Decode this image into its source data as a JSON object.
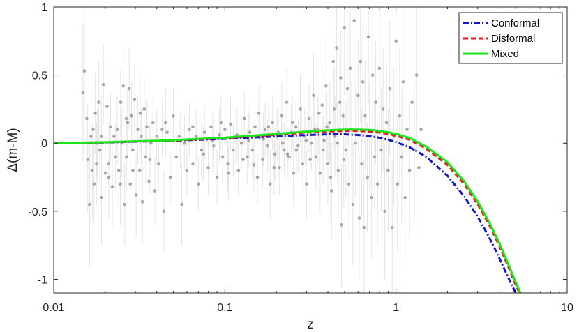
{
  "chart_data": {
    "type": "scatter",
    "title": "",
    "xlabel": "z",
    "ylabel": "Δ(m-M)",
    "xscale": "log",
    "xlim": [
      0.01,
      10
    ],
    "ylim": [
      -1.1,
      1
    ],
    "x_ticks": [
      {
        "value": 0.01,
        "label": "0.01"
      },
      {
        "value": 0.1,
        "label": "0.1"
      },
      {
        "value": 1,
        "label": "1"
      },
      {
        "value": 10,
        "label": "10"
      }
    ],
    "y_ticks": [
      {
        "value": 1,
        "label": "1"
      },
      {
        "value": 0.5,
        "label": "0.5"
      },
      {
        "value": 0,
        "label": "0"
      },
      {
        "value": -0.5,
        "label": "-0.5"
      },
      {
        "value": -1,
        "label": "-1"
      }
    ],
    "grid": false,
    "legend_position": "top-right",
    "scatter_color": "#a6a6a6",
    "errorbar_color": "#e4e4e4",
    "data_points": [
      [
        0.0151,
        0.53,
        0.6
      ],
      [
        0.0148,
        0.37,
        0.5
      ],
      [
        0.0156,
        0.18,
        0.35
      ],
      [
        0.0158,
        -0.12,
        0.4
      ],
      [
        0.0162,
        -0.45,
        0.45
      ],
      [
        0.0165,
        0.05,
        0.3
      ],
      [
        0.0168,
        -0.2,
        0.35
      ],
      [
        0.017,
        0.1,
        0.3
      ],
      [
        0.0172,
        -0.3,
        0.3
      ],
      [
        0.0175,
        0.22,
        0.3
      ],
      [
        0.0178,
        -0.15,
        0.3
      ],
      [
        0.018,
        0.0,
        0.25
      ],
      [
        0.0183,
        0.3,
        0.3
      ],
      [
        0.0186,
        -0.05,
        0.25
      ],
      [
        0.019,
        -0.4,
        0.35
      ],
      [
        0.0195,
        0.43,
        0.3
      ],
      [
        0.02,
        -0.22,
        0.3
      ],
      [
        0.0205,
        0.27,
        0.3
      ],
      [
        0.021,
        -0.15,
        0.3
      ],
      [
        0.0215,
        0.12,
        0.25
      ],
      [
        0.022,
        -0.32,
        0.3
      ],
      [
        0.0225,
        0.05,
        0.25
      ],
      [
        0.023,
        -0.1,
        0.25
      ],
      [
        0.0235,
        0.1,
        0.25
      ],
      [
        0.024,
        -0.2,
        0.25
      ],
      [
        0.0246,
        0.3,
        0.25
      ],
      [
        0.025,
        0.0,
        0.25
      ],
      [
        0.0255,
        0.42,
        0.3
      ],
      [
        0.026,
        -0.45,
        0.3
      ],
      [
        0.0266,
        -0.1,
        0.25
      ],
      [
        0.027,
        0.15,
        0.25
      ],
      [
        0.0276,
        0.4,
        0.3
      ],
      [
        0.028,
        -0.3,
        0.25
      ],
      [
        0.0285,
        0.2,
        0.25
      ],
      [
        0.029,
        -0.05,
        0.25
      ],
      [
        0.0297,
        0.32,
        0.25
      ],
      [
        0.0303,
        -0.38,
        0.3
      ],
      [
        0.031,
        0.1,
        0.25
      ],
      [
        0.0318,
        -0.2,
        0.25
      ],
      [
        0.0325,
        0.05,
        0.2
      ],
      [
        0.033,
        -0.43,
        0.3
      ],
      [
        0.0338,
        0.25,
        0.25
      ],
      [
        0.0345,
        -0.1,
        0.2
      ],
      [
        0.035,
        0.12,
        0.2
      ],
      [
        0.036,
        -0.28,
        0.25
      ],
      [
        0.037,
        0.0,
        0.2
      ],
      [
        0.038,
        0.15,
        0.2
      ],
      [
        0.039,
        -0.35,
        0.25
      ],
      [
        0.04,
        0.05,
        0.2
      ],
      [
        0.041,
        -0.15,
        0.2
      ],
      [
        0.043,
        0.1,
        0.2
      ],
      [
        0.044,
        -0.5,
        0.3
      ],
      [
        0.046,
        0.08,
        0.2
      ],
      [
        0.048,
        -0.25,
        0.2
      ],
      [
        0.05,
        0.2,
        0.2
      ],
      [
        0.052,
        -0.1,
        0.2
      ],
      [
        0.054,
        0.05,
        0.2
      ],
      [
        0.056,
        -0.45,
        0.3
      ],
      [
        0.058,
        0.0,
        0.2
      ],
      [
        0.06,
        -0.2,
        0.2
      ],
      [
        0.062,
        0.1,
        0.2
      ],
      [
        0.065,
        -0.15,
        0.2
      ],
      [
        0.068,
        0.05,
        0.2
      ],
      [
        0.07,
        -0.3,
        0.2
      ],
      [
        0.073,
        -0.05,
        0.2
      ],
      [
        0.076,
        0.08,
        0.2
      ],
      [
        0.08,
        -0.18,
        0.2
      ],
      [
        0.083,
        0.12,
        0.2
      ],
      [
        0.086,
        -0.02,
        0.2
      ],
      [
        0.09,
        -0.25,
        0.2
      ],
      [
        0.093,
        0.06,
        0.2
      ],
      [
        0.097,
        -0.1,
        0.2
      ],
      [
        0.1,
        0.1,
        0.2
      ],
      [
        0.104,
        -0.15,
        0.2
      ],
      [
        0.108,
        0.14,
        0.2
      ],
      [
        0.112,
        -0.05,
        0.2
      ],
      [
        0.116,
        0.05,
        0.2
      ],
      [
        0.12,
        -0.2,
        0.2
      ],
      [
        0.125,
        0.0,
        0.2
      ],
      [
        0.13,
        0.18,
        0.2
      ],
      [
        0.135,
        -0.1,
        0.2
      ],
      [
        0.14,
        0.08,
        0.2
      ],
      [
        0.145,
        -0.05,
        0.2
      ],
      [
        0.15,
        0.12,
        0.2
      ],
      [
        0.155,
        -0.25,
        0.2
      ],
      [
        0.16,
        0.04,
        0.2
      ],
      [
        0.166,
        -0.12,
        0.2
      ],
      [
        0.172,
        0.1,
        0.2
      ],
      [
        0.178,
        -0.02,
        0.2
      ],
      [
        0.184,
        -0.3,
        0.25
      ],
      [
        0.19,
        0.15,
        0.2
      ],
      [
        0.196,
        -0.08,
        0.2
      ],
      [
        0.202,
        0.05,
        0.2
      ],
      [
        0.208,
        -0.18,
        0.2
      ],
      [
        0.215,
        0.2,
        0.25
      ],
      [
        0.222,
        -0.05,
        0.2
      ],
      [
        0.23,
        0.3,
        0.25
      ],
      [
        0.237,
        -0.1,
        0.2
      ],
      [
        0.245,
        0.08,
        0.2
      ],
      [
        0.252,
        -0.22,
        0.25
      ],
      [
        0.26,
        0.12,
        0.2
      ],
      [
        0.268,
        -0.02,
        0.2
      ],
      [
        0.276,
        0.25,
        0.25
      ],
      [
        0.285,
        -0.15,
        0.2
      ],
      [
        0.293,
        0.05,
        0.2
      ],
      [
        0.3,
        -0.3,
        0.25
      ],
      [
        0.31,
        0.18,
        0.25
      ],
      [
        0.32,
        0.0,
        0.2
      ],
      [
        0.33,
        0.35,
        0.3
      ],
      [
        0.34,
        -0.1,
        0.25
      ],
      [
        0.35,
        0.1,
        0.25
      ],
      [
        0.36,
        -0.22,
        0.3
      ],
      [
        0.37,
        0.28,
        0.3
      ],
      [
        0.38,
        0.02,
        0.25
      ],
      [
        0.39,
        0.42,
        0.35
      ],
      [
        0.4,
        -0.15,
        0.3
      ],
      [
        0.41,
        0.15,
        0.3
      ],
      [
        0.42,
        -0.35,
        0.35
      ],
      [
        0.43,
        0.6,
        0.4
      ],
      [
        0.44,
        0.05,
        0.3
      ],
      [
        0.45,
        0.7,
        0.45
      ],
      [
        0.46,
        -0.2,
        0.35
      ],
      [
        0.47,
        0.3,
        0.35
      ],
      [
        0.48,
        -0.6,
        0.45
      ],
      [
        0.49,
        0.2,
        0.35
      ],
      [
        0.5,
        0.85,
        0.5
      ],
      [
        0.51,
        -0.05,
        0.35
      ],
      [
        0.52,
        0.4,
        0.4
      ],
      [
        0.53,
        -0.3,
        0.4
      ],
      [
        0.54,
        0.55,
        0.45
      ],
      [
        0.55,
        0.1,
        0.35
      ],
      [
        0.56,
        -0.45,
        0.45
      ],
      [
        0.57,
        0.9,
        0.5
      ],
      [
        0.58,
        0.0,
        0.4
      ],
      [
        0.6,
        0.35,
        0.4
      ],
      [
        0.61,
        -0.55,
        0.45
      ],
      [
        0.62,
        0.6,
        0.45
      ],
      [
        0.63,
        -0.15,
        0.4
      ],
      [
        0.64,
        0.45,
        0.45
      ],
      [
        0.65,
        -0.62,
        0.5
      ],
      [
        0.66,
        0.2,
        0.4
      ],
      [
        0.68,
        -0.25,
        0.4
      ],
      [
        0.69,
        0.78,
        0.5
      ],
      [
        0.7,
        0.05,
        0.4
      ],
      [
        0.72,
        -0.4,
        0.45
      ],
      [
        0.73,
        0.5,
        0.45
      ],
      [
        0.75,
        -0.1,
        0.4
      ],
      [
        0.76,
        0.3,
        0.45
      ],
      [
        0.78,
        -0.3,
        0.45
      ],
      [
        0.8,
        0.55,
        0.5
      ],
      [
        0.82,
        -0.05,
        0.45
      ],
      [
        0.84,
        0.25,
        0.45
      ],
      [
        0.86,
        -0.5,
        0.5
      ],
      [
        0.88,
        0.15,
        0.45
      ],
      [
        0.9,
        -0.2,
        0.45
      ],
      [
        0.92,
        0.4,
        0.5
      ],
      [
        0.95,
        -0.62,
        0.5
      ],
      [
        0.97,
        0.05,
        0.5
      ],
      [
        1.0,
        0.75,
        0.55
      ],
      [
        1.02,
        -0.3,
        0.5
      ],
      [
        1.05,
        0.2,
        0.5
      ],
      [
        1.08,
        -0.1,
        0.5
      ],
      [
        1.1,
        0.45,
        0.55
      ],
      [
        1.13,
        -0.4,
        0.5
      ],
      [
        1.16,
        0.1,
        0.5
      ],
      [
        1.2,
        -0.2,
        0.5
      ],
      [
        1.24,
        0.3,
        0.55
      ],
      [
        1.28,
        -0.05,
        0.5
      ],
      [
        1.32,
        0.5,
        0.55
      ],
      [
        1.36,
        -0.18,
        0.5
      ],
      [
        1.4,
        0.1,
        0.5
      ],
      [
        0.021,
        -0.25,
        0.3
      ],
      [
        0.019,
        0.05,
        0.3
      ],
      [
        0.0245,
        -0.3,
        0.3
      ],
      [
        0.0265,
        0.18,
        0.3
      ],
      [
        0.029,
        -0.2,
        0.3
      ],
      [
        0.032,
        0.22,
        0.3
      ],
      [
        0.0365,
        -0.12,
        0.25
      ],
      [
        0.045,
        0.15,
        0.25
      ],
      [
        0.055,
        0.02,
        0.2
      ],
      [
        0.065,
        0.12,
        0.2
      ],
      [
        0.075,
        -0.08,
        0.2
      ],
      [
        0.085,
        0.02,
        0.2
      ],
      [
        0.095,
        0.15,
        0.2
      ],
      [
        0.105,
        -0.22,
        0.2
      ],
      [
        0.118,
        0.06,
        0.2
      ],
      [
        0.128,
        -0.12,
        0.2
      ],
      [
        0.138,
        0.02,
        0.2
      ],
      [
        0.148,
        -0.16,
        0.2
      ],
      [
        0.158,
        0.22,
        0.2
      ],
      [
        0.168,
        0.03,
        0.2
      ],
      [
        0.18,
        0.12,
        0.2
      ],
      [
        0.194,
        -0.18,
        0.2
      ],
      [
        0.205,
        0.08,
        0.2
      ],
      [
        0.218,
        0.0,
        0.2
      ],
      [
        0.232,
        -0.08,
        0.2
      ],
      [
        0.248,
        0.15,
        0.2
      ],
      [
        0.262,
        -0.05,
        0.2
      ],
      [
        0.28,
        0.08,
        0.2
      ],
      [
        0.298,
        0.02,
        0.2
      ],
      [
        0.315,
        -0.12,
        0.2
      ],
      [
        0.335,
        0.1,
        0.25
      ],
      [
        0.355,
        0.22,
        0.25
      ],
      [
        0.375,
        -0.05,
        0.25
      ],
      [
        0.395,
        0.12,
        0.25
      ],
      [
        0.415,
        -0.25,
        0.3
      ],
      [
        0.435,
        0.25,
        0.3
      ],
      [
        0.455,
        0.0,
        0.3
      ],
      [
        0.475,
        0.48,
        0.35
      ],
      [
        0.495,
        -0.12,
        0.35
      ]
    ],
    "series": [
      {
        "name": "Conformal",
        "color": "#1414c8",
        "dash": "dashdot",
        "x": [
          0.01,
          0.02,
          0.05,
          0.1,
          0.2,
          0.3,
          0.4,
          0.5,
          0.6,
          0.7,
          0.8,
          0.9,
          1.0,
          1.2,
          1.5,
          2.0,
          2.5,
          3.0,
          3.5,
          4.0,
          4.5,
          5.0,
          5.3
        ],
        "y": [
          0.0,
          0.005,
          0.018,
          0.032,
          0.05,
          0.06,
          0.065,
          0.065,
          0.06,
          0.052,
          0.04,
          0.025,
          0.008,
          -0.03,
          -0.1,
          -0.24,
          -0.39,
          -0.54,
          -0.69,
          -0.84,
          -0.98,
          -1.1,
          -1.15
        ]
      },
      {
        "name": "Disformal",
        "color": "#e61919",
        "dash": "dashed",
        "x": [
          0.01,
          0.02,
          0.05,
          0.1,
          0.2,
          0.3,
          0.4,
          0.5,
          0.6,
          0.7,
          0.8,
          0.9,
          1.0,
          1.2,
          1.5,
          2.0,
          2.5,
          3.0,
          3.5,
          4.0,
          4.5,
          5.0,
          5.5
        ],
        "y": [
          0.0,
          0.006,
          0.02,
          0.036,
          0.062,
          0.078,
          0.086,
          0.09,
          0.09,
          0.086,
          0.078,
          0.068,
          0.055,
          0.025,
          -0.04,
          -0.16,
          -0.3,
          -0.45,
          -0.6,
          -0.75,
          -0.9,
          -1.04,
          -1.15
        ]
      },
      {
        "name": "Mixed",
        "color": "#19e619",
        "dash": "solid",
        "x": [
          0.01,
          0.02,
          0.05,
          0.1,
          0.2,
          0.3,
          0.4,
          0.5,
          0.6,
          0.7,
          0.8,
          0.9,
          1.0,
          1.2,
          1.5,
          2.0,
          2.5,
          3.0,
          3.5,
          4.0,
          4.5,
          5.0,
          5.5
        ],
        "y": [
          0.0,
          0.007,
          0.022,
          0.04,
          0.068,
          0.085,
          0.095,
          0.1,
          0.1,
          0.097,
          0.09,
          0.08,
          0.068,
          0.038,
          -0.025,
          -0.14,
          -0.28,
          -0.43,
          -0.58,
          -0.73,
          -0.88,
          -1.02,
          -1.14
        ]
      }
    ]
  }
}
